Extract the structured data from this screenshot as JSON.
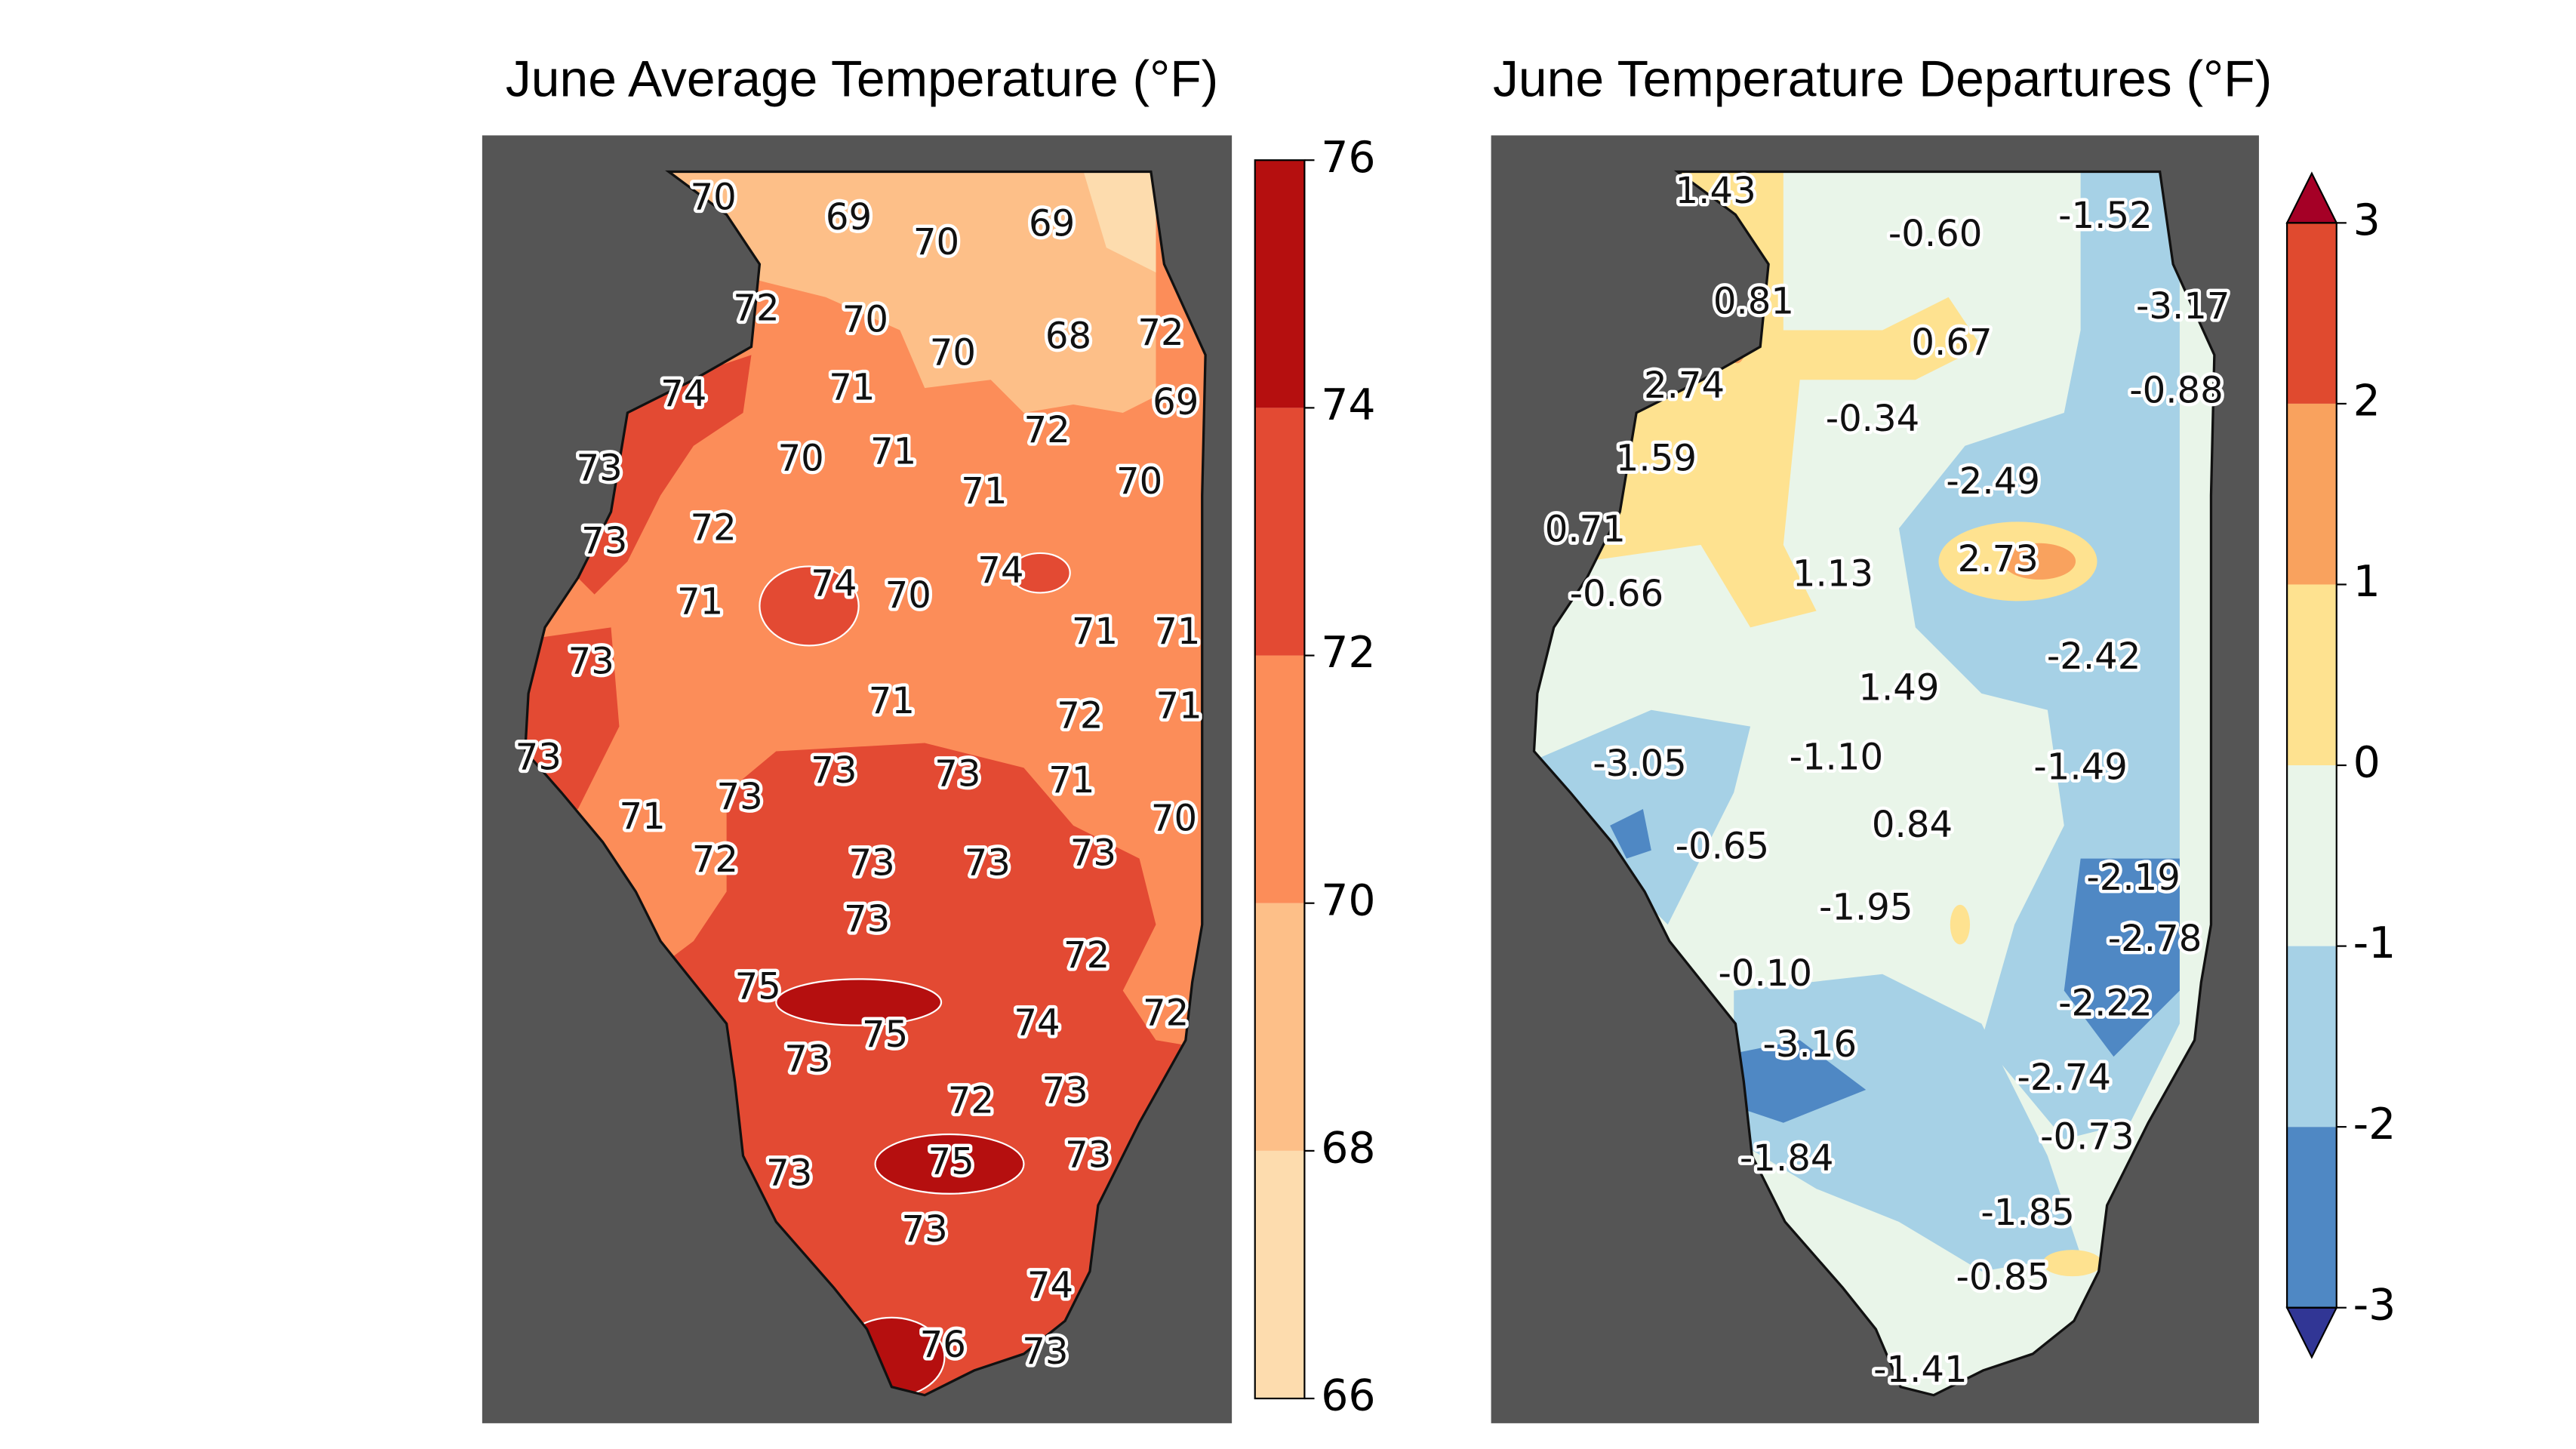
{
  "maps": [
    {
      "title": "June Average Temperature (°F)",
      "labels": [
        "70",
        "69",
        "70",
        "69",
        "72",
        "70",
        "70",
        "68",
        "72",
        "74",
        "71",
        "69",
        "72",
        "73",
        "70",
        "71",
        "71",
        "70",
        "73",
        "72",
        "74",
        "70",
        "74",
        "71",
        "71",
        "71",
        "73",
        "71",
        "72",
        "71",
        "73",
        "73",
        "73",
        "71",
        "71",
        "73",
        "70",
        "72",
        "73",
        "73",
        "73",
        "73",
        "72",
        "75",
        "75",
        "74",
        "72",
        "73",
        "72",
        "73",
        "75",
        "73",
        "73",
        "73",
        "74",
        "76",
        "73"
      ],
      "colorbar": {
        "ticks": [
          66,
          68,
          70,
          72,
          74,
          76
        ],
        "colors": [
          "#fddcae",
          "#fdbf88",
          "#fc8d59",
          "#e34a33",
          "#b50f0f"
        ]
      }
    },
    {
      "title": "June Temperature Departures (°F)",
      "labels": [
        "1.43",
        "-0.60",
        "-1.52",
        "0.81",
        "-3.17",
        "0.67",
        "2.74",
        "-0.88",
        "-0.34",
        "1.59",
        "-2.49",
        "0.71",
        "2.73",
        "1.13",
        "-0.66",
        "-2.42",
        "1.49",
        "-3.05",
        "-1.10",
        "-1.49",
        "0.84",
        "-0.65",
        "-2.19",
        "-1.95",
        "-2.78",
        "-0.10",
        "-2.22",
        "-3.16",
        "-2.74",
        "-0.73",
        "-1.84",
        "-1.85",
        "-0.85",
        "-1.41"
      ],
      "colorbar": {
        "ticks": [
          -3,
          -2,
          -1,
          0,
          1,
          2,
          3
        ],
        "colors": [
          "#4f88c4",
          "#a6d1e6",
          "#e9f5e9",
          "#fee290",
          "#f9a25e",
          "#e04a2f"
        ],
        "extend_colors": [
          "#313695",
          "#a50026"
        ]
      }
    }
  ]
}
